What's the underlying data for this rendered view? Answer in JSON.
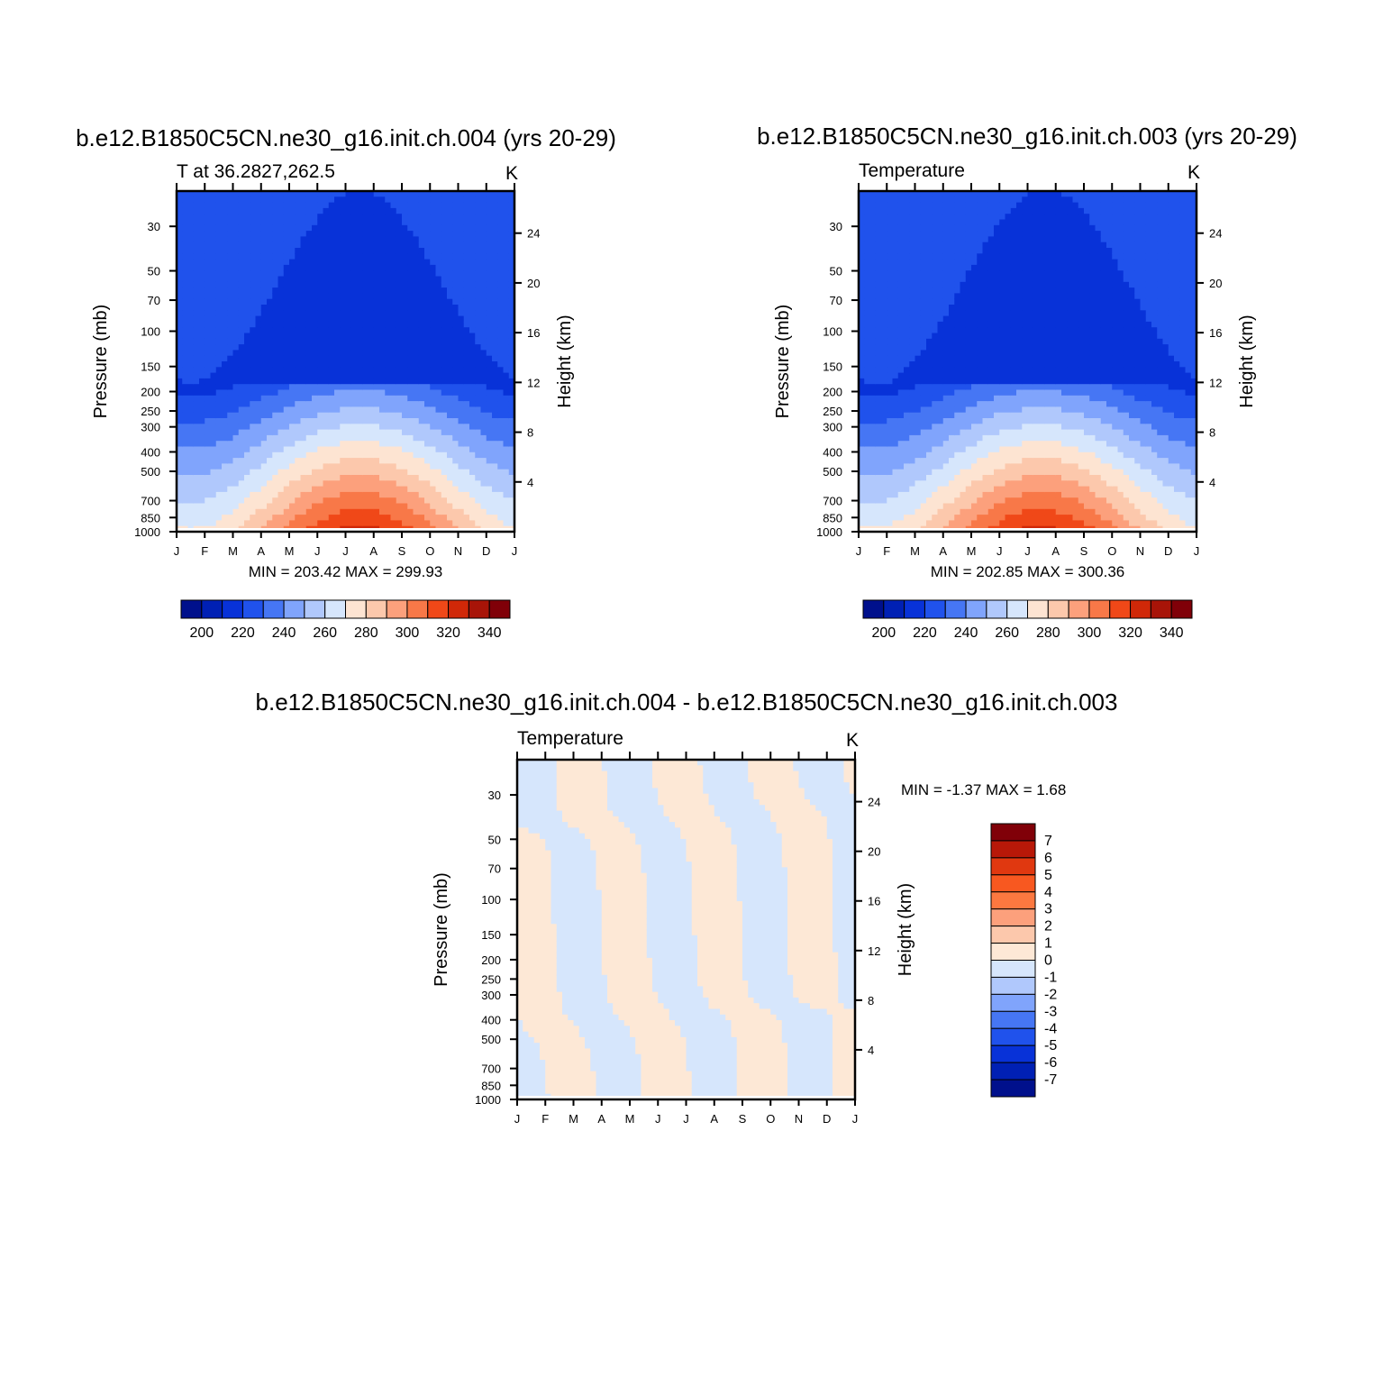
{
  "chart_data": [
    {
      "type": "heatmap",
      "title": "b.e12.B1850C5CN.ne30_g16.init.ch.004 (yrs 20-29)",
      "subtitle_left": "T at 36.2827,262.5",
      "subtitle_right": "K",
      "ylabel": "Pressure (mb)",
      "ylabel_right": "Height (km)",
      "x_ticks": [
        "J",
        "F",
        "M",
        "A",
        "M",
        "J",
        "J",
        "A",
        "S",
        "O",
        "N",
        "D",
        "J"
      ],
      "y_ticks": [
        30,
        50,
        70,
        100,
        150,
        200,
        250,
        300,
        400,
        500,
        700,
        850,
        1000
      ],
      "y_right_ticks": [
        24,
        20,
        16,
        12,
        8,
        4
      ],
      "ylim": [
        1000,
        20
      ],
      "y_scale": "log",
      "stats": "MIN = 203.42 MAX = 299.93",
      "legend": {
        "placement": "bottom",
        "orientation": "horizontal",
        "labels": [
          "200",
          "220",
          "240",
          "260",
          "280",
          "300",
          "320",
          "340"
        ]
      }
    },
    {
      "type": "heatmap",
      "title": "b.e12.B1850C5CN.ne30_g16.init.ch.003 (yrs 20-29)",
      "subtitle_left": "Temperature",
      "subtitle_right": "K",
      "ylabel": "Pressure (mb)",
      "ylabel_right": "Height (km)",
      "x_ticks": [
        "J",
        "F",
        "M",
        "A",
        "M",
        "J",
        "J",
        "A",
        "S",
        "O",
        "N",
        "D",
        "J"
      ],
      "y_ticks": [
        30,
        50,
        70,
        100,
        150,
        200,
        250,
        300,
        400,
        500,
        700,
        850,
        1000
      ],
      "y_right_ticks": [
        24,
        20,
        16,
        12,
        8,
        4
      ],
      "ylim": [
        1000,
        20
      ],
      "y_scale": "log",
      "stats": "MIN = 202.85 MAX = 300.36",
      "legend": {
        "placement": "bottom",
        "orientation": "horizontal",
        "labels": [
          "200",
          "220",
          "240",
          "260",
          "280",
          "300",
          "320",
          "340"
        ]
      }
    },
    {
      "type": "heatmap",
      "title": "b.e12.B1850C5CN.ne30_g16.init.ch.004 - b.e12.B1850C5CN.ne30_g16.init.ch.003",
      "subtitle_left": "Temperature",
      "subtitle_right": "K",
      "ylabel": "Pressure (mb)",
      "ylabel_right": "Height (km)",
      "x_ticks": [
        "J",
        "F",
        "M",
        "A",
        "M",
        "J",
        "J",
        "A",
        "S",
        "O",
        "N",
        "D",
        "J"
      ],
      "y_ticks": [
        30,
        50,
        70,
        100,
        150,
        200,
        250,
        300,
        400,
        500,
        700,
        850,
        1000
      ],
      "y_right_ticks": [
        24,
        20,
        16,
        12,
        8,
        4
      ],
      "ylim": [
        1000,
        20
      ],
      "y_scale": "log",
      "stats": "MIN =   -1.37 MAX =    1.68",
      "legend": {
        "placement": "right",
        "orientation": "vertical",
        "labels": [
          "7",
          "6",
          "5",
          "4",
          "3",
          "2",
          "1",
          "0",
          "-1",
          "-2",
          "-3",
          "-4",
          "-5",
          "-6",
          "-7"
        ]
      }
    }
  ],
  "colors": {
    "abs_levels": [
      "#00108c",
      "#0020b4",
      "#0832d8",
      "#2052ec",
      "#4676f4",
      "#80a4fc",
      "#b0c8fc",
      "#d6e6fc",
      "#fde4d2",
      "#fcc8ac",
      "#fca07c",
      "#f87848",
      "#f04818",
      "#d02808",
      "#a81408",
      "#800008"
    ],
    "diff_levels": [
      "#800008",
      "#b81808",
      "#e03810",
      "#f85820",
      "#fc7840",
      "#fca07c",
      "#fcc8ac",
      "#fde8d6",
      "#d6e6fc",
      "#b0c8fc",
      "#80a4fc",
      "#4676f4",
      "#2052ec",
      "#0832d8",
      "#0020b4",
      "#00108c"
    ]
  }
}
